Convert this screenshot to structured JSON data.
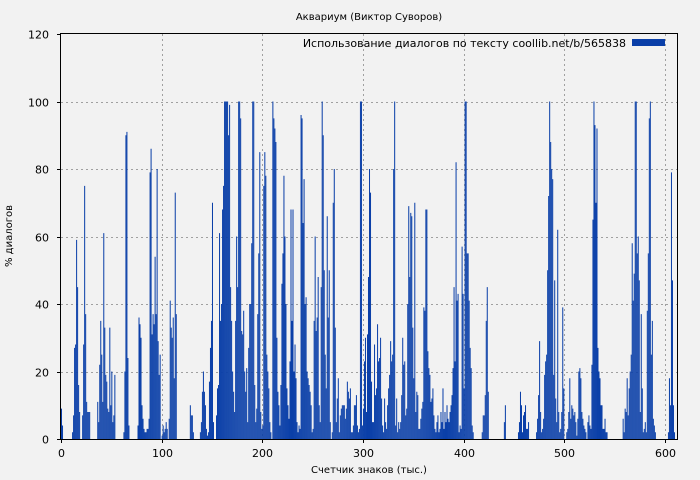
{
  "chart_data": {
    "type": "bar",
    "title": "Аквариум (Виктор Суворов)",
    "xlabel": "Счетчик знаков (тыс.)",
    "ylabel": "% диалогов",
    "xlim": [
      0,
      612
    ],
    "ylim": [
      0,
      120
    ],
    "xticks": [
      0,
      100,
      200,
      300,
      400,
      500,
      600
    ],
    "yticks": [
      0,
      20,
      40,
      60,
      80,
      100,
      120
    ],
    "grid": true,
    "legend_position": "top-right",
    "bar_width": 1,
    "series": [
      {
        "name": "Использование диалогов по тексту coollib.net/b/565838",
        "color": "#0a3fa8",
        "segments": [
          {
            "from": 0,
            "values": [
              9,
              4,
              0,
              0,
              0,
              0,
              0,
              0,
              0,
              0,
              0,
              2,
              7,
              27,
              28,
              59,
              45,
              16,
              8,
              0,
              0,
              7,
              28,
              75,
              37,
              11,
              8,
              8,
              8,
              0,
              0,
              0,
              0,
              0,
              0,
              0,
              11,
              5,
              22,
              35,
              25,
              11,
              61,
              33,
              19,
              17,
              9,
              8,
              33,
              10,
              20,
              5,
              7,
              19,
              0,
              0,
              0,
              0,
              0,
              0,
              0,
              0,
              2,
              20,
              90,
              91,
              24,
              4,
              0,
              0,
              0,
              0,
              0,
              0,
              0,
              0,
              4,
              36,
              34,
              30,
              10,
              6,
              3,
              2,
              2,
              3,
              3,
              6,
              79,
              86,
              31,
              37,
              34,
              54,
              37,
              80,
              29,
              19,
              25,
              0,
              1,
              4,
              2,
              3,
              5,
              3,
              0,
              6,
              41,
              33,
              30,
              36,
              18,
              73,
              37,
              0,
              0,
              0,
              0,
              0,
              0,
              0,
              0,
              0,
              0,
              0,
              0,
              0,
              10,
              7,
              7,
              2,
              0,
              0,
              0,
              0,
              0,
              0,
              0,
              0,
              0
            ]
          },
          {
            "from": 138,
            "values": [
              2,
              5,
              14,
              20,
              14,
              10,
              3,
              1,
              2,
              17,
              27,
              35,
              70,
              5,
              0,
              0,
              7,
              15,
              16,
              61,
              35,
              40,
              68,
              75,
              100,
              100,
              100,
              100,
              90,
              99,
              45,
              35,
              20,
              14,
              8,
              35,
              60,
              45,
              100,
              100,
              95,
              32,
              31,
              38,
              20,
              14,
              21,
              5,
              27,
              40,
              40,
              58,
              100,
              100,
              16,
              5,
              9,
              37,
              55,
              85,
              8,
              3,
              4,
              75,
              85,
              78,
              25,
              20,
              15,
              5,
              2,
              0,
              100,
              95,
              92,
              88,
              30,
              14,
              10,
              4,
              16,
              46,
              55,
              78,
              60,
              40,
              15,
              10,
              6,
              23,
              68,
              35,
              68,
              20,
              28,
              18,
              5,
              2,
              4,
              3,
              96,
              95,
              64,
              77,
              40,
              42,
              20,
              18,
              16,
              14,
              10,
              2,
              3,
              35,
              60,
              32,
              36,
              48,
              10,
              5,
              45,
              100,
              90,
              50,
              25,
              15,
              66,
              36,
              50,
              5,
              0,
              2,
              70,
              80,
              33,
              5,
              12,
              18,
              2,
              7,
              9,
              10
            ]
          },
          {
            "from": 280,
            "values": [
              10,
              10,
              6,
              9,
              17,
              14,
              12,
              15,
              2,
              2,
              4,
              10,
              10,
              13,
              4,
              2,
              3,
              100,
              100,
              4,
              9,
              23,
              30,
              8,
              31,
              48,
              80,
              73,
              17,
              5,
              5,
              28,
              13,
              15,
              34,
              23,
              24,
              30,
              12,
              4,
              2,
              12,
              5,
              3,
              10,
              15,
              19,
              29,
              23,
              25,
              80,
              100,
              4,
              12,
              2,
              5,
              3,
              5,
              13,
              30,
              22,
              23,
              7,
              9,
              40,
              69,
              48,
              67,
              66,
              33,
              18,
              70,
              8,
              14,
              13,
              3,
              3,
              6,
              9,
              11,
              39,
              38,
              68,
              68,
              26,
              21,
              19,
              11,
              12,
              15,
              7,
              3,
              2,
              5,
              7,
              2,
              3,
              8,
              5,
              15,
              3,
              8,
              5,
              10,
              6,
              5,
              8,
              10,
              13,
              21,
              45,
              23,
              82,
              41,
              43,
              2,
              4,
              3,
              57,
              43,
              15,
              100,
              100,
              55,
              55,
              41,
              27,
              21,
              4,
              2,
              0,
              0,
              0,
              0,
              0,
              0,
              0,
              0,
              2,
              7,
              7,
              13,
              35,
              45,
              14
            ]
          },
          {
            "from": 440,
            "values": [
              5,
              10,
              0,
              0,
              0,
              0,
              0,
              0,
              0,
              0,
              0,
              0,
              0,
              0,
              2,
              5,
              14,
              10,
              2,
              7,
              8,
              10,
              3,
              3,
              5,
              0,
              0,
              0,
              0,
              0,
              0,
              0,
              2,
              6,
              13,
              29,
              8,
              2,
              3,
              6,
              19,
              23,
              25,
              50,
              72,
              100,
              88,
              80,
              77,
              19,
              47,
              12,
              5,
              62,
              8,
              2,
              3,
              8,
              39,
              15,
              0,
              0,
              2,
              3,
              8,
              18,
              6,
              10,
              9,
              7,
              8,
              5,
              1,
              6,
              20,
              21,
              18,
              8,
              6,
              4,
              3,
              2,
              0,
              5,
              7,
              4,
              3,
              22,
              65,
              100,
              93,
              70,
              92,
              27,
              20,
              18,
              10,
              10,
              3,
              3,
              6,
              2,
              2,
              0,
              0,
              0,
              0,
              0,
              0,
              0,
              0,
              0,
              0,
              0,
              0,
              0,
              0,
              0,
              6,
              2,
              9,
              8,
              18,
              7,
              15,
              20,
              25,
              58,
              41,
              49,
              100,
              100,
              55,
              60,
              47,
              8,
              37,
              15,
              2,
              3,
              5,
              2,
              38,
              55,
              95,
              100,
              25,
              35,
              6,
              4,
              2,
              0,
              0,
              0,
              0,
              0,
              0,
              0,
              0,
              0,
              0,
              0,
              0,
              2,
              18,
              10,
              79,
              47,
              10,
              2,
              0
            ]
          }
        ]
      }
    ]
  }
}
